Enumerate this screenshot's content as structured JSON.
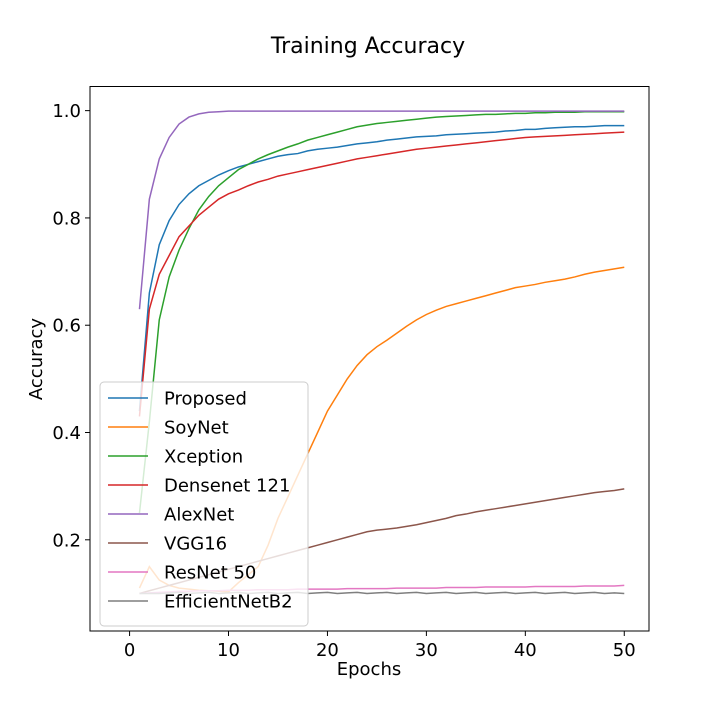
{
  "chart_data": {
    "type": "line",
    "title": "Training Accuracy",
    "xlabel": "Epochs",
    "ylabel": "Accuracy",
    "xlim": [
      -4,
      52.5
    ],
    "ylim": [
      0.03,
      1.045
    ],
    "x_ticks": [
      0,
      10,
      20,
      30,
      40,
      50
    ],
    "y_ticks": [
      0.2,
      0.4,
      0.6,
      0.8,
      1.0
    ],
    "y_tick_labels": [
      "0.2",
      "0.4",
      "0.6",
      "0.8",
      "1.0"
    ],
    "grid": false,
    "legend_position": "lower-left",
    "x": [
      1,
      2,
      3,
      4,
      5,
      6,
      7,
      8,
      9,
      10,
      11,
      12,
      13,
      14,
      15,
      16,
      17,
      18,
      19,
      20,
      21,
      22,
      23,
      24,
      25,
      26,
      27,
      28,
      29,
      30,
      31,
      32,
      33,
      34,
      35,
      36,
      37,
      38,
      39,
      40,
      41,
      42,
      43,
      44,
      45,
      46,
      47,
      48,
      49,
      50
    ],
    "series": [
      {
        "name": "Proposed",
        "color": "#1f77b4",
        "values": [
          0.44,
          0.66,
          0.75,
          0.795,
          0.825,
          0.845,
          0.86,
          0.87,
          0.88,
          0.888,
          0.895,
          0.9,
          0.905,
          0.91,
          0.915,
          0.918,
          0.92,
          0.925,
          0.928,
          0.93,
          0.932,
          0.935,
          0.938,
          0.94,
          0.942,
          0.945,
          0.947,
          0.949,
          0.951,
          0.952,
          0.953,
          0.955,
          0.956,
          0.957,
          0.958,
          0.959,
          0.96,
          0.962,
          0.963,
          0.965,
          0.965,
          0.967,
          0.968,
          0.969,
          0.97,
          0.97,
          0.971,
          0.972,
          0.972,
          0.972
        ]
      },
      {
        "name": "SoyNet",
        "color": "#ff7f0e",
        "values": [
          0.11,
          0.15,
          0.125,
          0.115,
          0.11,
          0.108,
          0.106,
          0.105,
          0.104,
          0.103,
          0.12,
          0.135,
          0.15,
          0.19,
          0.24,
          0.28,
          0.32,
          0.36,
          0.4,
          0.44,
          0.47,
          0.5,
          0.525,
          0.545,
          0.56,
          0.572,
          0.585,
          0.598,
          0.61,
          0.62,
          0.628,
          0.635,
          0.64,
          0.645,
          0.65,
          0.655,
          0.66,
          0.665,
          0.67,
          0.673,
          0.676,
          0.68,
          0.683,
          0.686,
          0.69,
          0.695,
          0.699,
          0.702,
          0.705,
          0.708
        ]
      },
      {
        "name": "Xception",
        "color": "#2ca02c",
        "values": [
          0.25,
          0.42,
          0.61,
          0.69,
          0.74,
          0.78,
          0.815,
          0.84,
          0.86,
          0.875,
          0.89,
          0.9,
          0.91,
          0.918,
          0.925,
          0.932,
          0.938,
          0.945,
          0.95,
          0.955,
          0.96,
          0.965,
          0.97,
          0.973,
          0.976,
          0.978,
          0.98,
          0.982,
          0.984,
          0.986,
          0.988,
          0.989,
          0.99,
          0.991,
          0.992,
          0.993,
          0.993,
          0.994,
          0.995,
          0.995,
          0.996,
          0.996,
          0.997,
          0.997,
          0.997,
          0.998,
          0.998,
          0.998,
          0.998,
          0.998
        ]
      },
      {
        "name": "Densenet 121",
        "color": "#d62728",
        "values": [
          0.43,
          0.63,
          0.695,
          0.73,
          0.765,
          0.785,
          0.805,
          0.82,
          0.835,
          0.845,
          0.852,
          0.86,
          0.867,
          0.872,
          0.878,
          0.882,
          0.886,
          0.89,
          0.894,
          0.898,
          0.902,
          0.906,
          0.91,
          0.913,
          0.916,
          0.919,
          0.922,
          0.925,
          0.928,
          0.93,
          0.932,
          0.934,
          0.936,
          0.938,
          0.94,
          0.942,
          0.944,
          0.946,
          0.948,
          0.95,
          0.951,
          0.952,
          0.953,
          0.954,
          0.955,
          0.956,
          0.957,
          0.958,
          0.959,
          0.96
        ]
      },
      {
        "name": "AlexNet",
        "color": "#9467bd",
        "values": [
          0.63,
          0.835,
          0.91,
          0.95,
          0.975,
          0.988,
          0.994,
          0.997,
          0.998,
          0.999,
          0.999,
          0.999,
          0.999,
          0.999,
          0.999,
          0.999,
          0.999,
          0.999,
          0.999,
          0.999,
          0.999,
          0.999,
          0.999,
          0.999,
          0.999,
          0.999,
          0.999,
          0.999,
          0.999,
          0.999,
          0.999,
          0.999,
          0.999,
          0.999,
          0.999,
          0.999,
          0.999,
          0.999,
          0.999,
          0.999,
          0.999,
          0.999,
          0.999,
          0.999,
          0.999,
          0.999,
          0.999,
          0.999,
          0.999,
          0.999
        ]
      },
      {
        "name": "VGG16",
        "color": "#8c564b",
        "values": [
          0.1,
          0.105,
          0.11,
          0.115,
          0.12,
          0.125,
          0.13,
          0.135,
          0.14,
          0.145,
          0.15,
          0.155,
          0.16,
          0.165,
          0.17,
          0.175,
          0.18,
          0.185,
          0.19,
          0.195,
          0.2,
          0.205,
          0.21,
          0.215,
          0.218,
          0.22,
          0.222,
          0.225,
          0.228,
          0.232,
          0.236,
          0.24,
          0.245,
          0.248,
          0.252,
          0.255,
          0.258,
          0.261,
          0.264,
          0.267,
          0.27,
          0.273,
          0.276,
          0.279,
          0.282,
          0.285,
          0.288,
          0.29,
          0.292,
          0.295
        ]
      },
      {
        "name": "ResNet 50",
        "color": "#e377c2",
        "values": [
          0.1,
          0.101,
          0.102,
          0.103,
          0.104,
          0.104,
          0.105,
          0.105,
          0.105,
          0.106,
          0.106,
          0.106,
          0.107,
          0.107,
          0.107,
          0.107,
          0.108,
          0.108,
          0.108,
          0.108,
          0.108,
          0.109,
          0.109,
          0.109,
          0.109,
          0.109,
          0.11,
          0.11,
          0.11,
          0.11,
          0.11,
          0.111,
          0.111,
          0.111,
          0.111,
          0.112,
          0.112,
          0.112,
          0.112,
          0.112,
          0.113,
          0.113,
          0.113,
          0.113,
          0.113,
          0.114,
          0.114,
          0.114,
          0.114,
          0.115
        ]
      },
      {
        "name": "EfficientNetB2",
        "color": "#7f7f7f",
        "values": [
          0.1,
          0.1,
          0.1,
          0.101,
          0.102,
          0.1,
          0.101,
          0.102,
          0.1,
          0.101,
          0.102,
          0.1,
          0.101,
          0.102,
          0.1,
          0.101,
          0.102,
          0.1,
          0.101,
          0.102,
          0.1,
          0.101,
          0.102,
          0.1,
          0.101,
          0.102,
          0.1,
          0.101,
          0.102,
          0.1,
          0.101,
          0.102,
          0.1,
          0.101,
          0.102,
          0.1,
          0.101,
          0.102,
          0.1,
          0.101,
          0.102,
          0.1,
          0.101,
          0.102,
          0.1,
          0.101,
          0.102,
          0.1,
          0.101,
          0.1
        ]
      }
    ]
  }
}
